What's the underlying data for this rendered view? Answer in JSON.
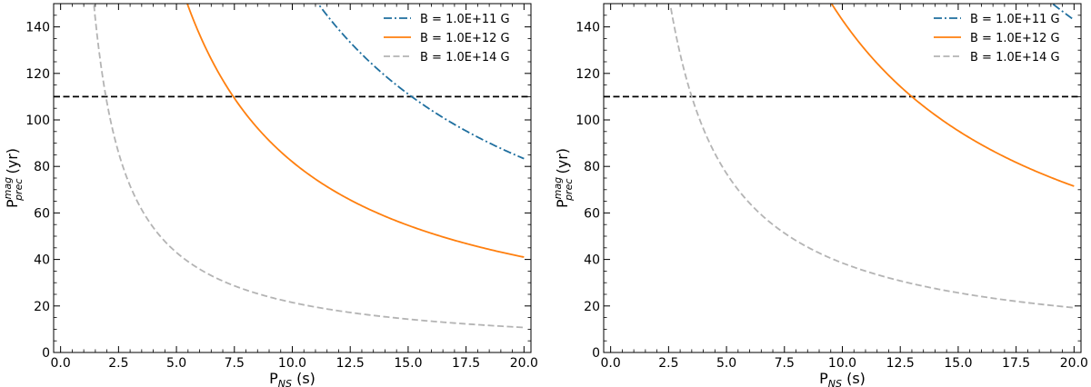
{
  "chart_data": [
    {
      "type": "line",
      "xlabel": "P",
      "xlabel_sub": "NS",
      "xlabel_unit": " (s)",
      "ylabel": "P",
      "ylabel_sup": "mag",
      "ylabel_sub": "prec",
      "ylabel_unit": " (yr)",
      "xlim": [
        -0.3,
        20.3
      ],
      "ylim": [
        0,
        150
      ],
      "xticks": [
        0.0,
        2.5,
        5.0,
        7.5,
        10.0,
        12.5,
        15.0,
        17.5,
        20.0
      ],
      "xtick_labels": [
        "0.0",
        "2.5",
        "5.0",
        "7.5",
        "10.0",
        "12.5",
        "15.0",
        "17.5",
        "20.0"
      ],
      "yticks": [
        0,
        20,
        40,
        60,
        80,
        100,
        120,
        140
      ],
      "ytick_labels": [
        "0",
        "20",
        "40",
        "60",
        "80",
        "100",
        "120",
        "140"
      ],
      "grid": false,
      "legend_position": "top-right",
      "hline": {
        "y": 110,
        "style": "dashed",
        "color": "#000000"
      },
      "series": [
        {
          "name": "B = 1.0E+11 G",
          "color": "#1f6f9f",
          "style": "dashdot",
          "model": "k/x",
          "k": 1667,
          "x_range": [
            10.9,
            20.0
          ]
        },
        {
          "name": "B = 1.0E+12 G",
          "color": "#ff7f0e",
          "style": "solid",
          "model": "k/x",
          "k": 820,
          "x_range": [
            5.3,
            20.0
          ]
        },
        {
          "name": "B = 1.0E+14 G",
          "color": "#b4b4b4",
          "style": "dashed",
          "model": "k/x",
          "k": 215,
          "x_range": [
            1.4,
            20.0
          ]
        }
      ]
    },
    {
      "type": "line",
      "xlabel": "P",
      "xlabel_sub": "NS",
      "xlabel_unit": " (s)",
      "ylabel": "P",
      "ylabel_sup": "mag",
      "ylabel_sub": "prec",
      "ylabel_unit": " (yr)",
      "xlim": [
        -0.3,
        20.3
      ],
      "ylim": [
        0,
        150
      ],
      "xticks": [
        0.0,
        2.5,
        5.0,
        7.5,
        10.0,
        12.5,
        15.0,
        17.5,
        20.0
      ],
      "xtick_labels": [
        "0.0",
        "2.5",
        "5.0",
        "7.5",
        "10.0",
        "12.5",
        "15.0",
        "17.5",
        "20.0"
      ],
      "yticks": [
        0,
        20,
        40,
        60,
        80,
        100,
        120,
        140
      ],
      "ytick_labels": [
        "0",
        "20",
        "40",
        "60",
        "80",
        "100",
        "120",
        "140"
      ],
      "grid": false,
      "legend_position": "top-right",
      "hline": {
        "y": 110,
        "style": "dashed",
        "color": "#000000"
      },
      "series": [
        {
          "name": "B = 1.0E+11 G",
          "color": "#1f6f9f",
          "style": "dashdot",
          "model": "k/x",
          "k": 2860,
          "x_range": [
            19.1,
            20.0
          ]
        },
        {
          "name": "B = 1.0E+12 G",
          "color": "#ff7f0e",
          "style": "solid",
          "model": "k/x",
          "k": 1430,
          "x_range": [
            9.5,
            20.0
          ]
        },
        {
          "name": "B = 1.0E+14 G",
          "color": "#b4b4b4",
          "style": "dashed",
          "model": "k/x",
          "k": 385,
          "x_range": [
            2.6,
            20.0
          ]
        }
      ]
    }
  ]
}
